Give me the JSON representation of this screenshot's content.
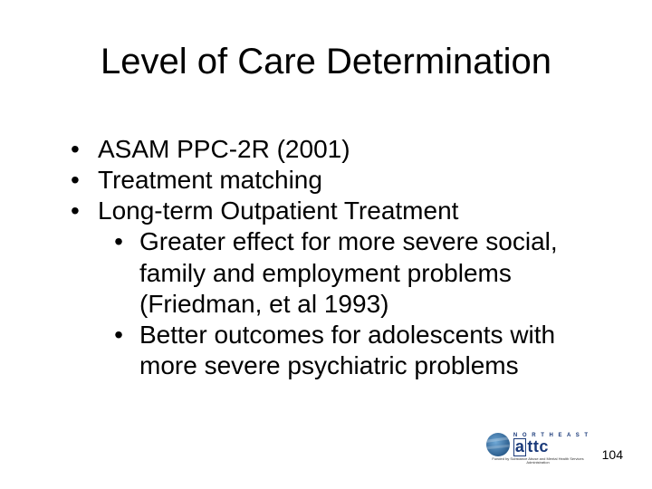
{
  "title": "Level of Care Determination",
  "bullets": {
    "b1": "ASAM PPC-2R (2001)",
    "b2": "Treatment matching",
    "b3": "Long-term Outpatient Treatment",
    "b3_1": "Greater effect for more severe social, family and employment problems (Friedman, et al 1993)",
    "b3_2": "Better outcomes for adolescents with more severe psychiatric problems"
  },
  "page_number": "104",
  "logo": {
    "northeast": "N O R T H E A S T",
    "attc": "ttc",
    "box_letter": "a",
    "sub": "Funded by Substance Abuse and Mental Health Services Administration"
  },
  "colors": {
    "text": "#000000",
    "background": "#ffffff",
    "logo_blue": "#1a3a7a"
  },
  "fonts": {
    "title_size_pt": 40,
    "body_size_pt": 28,
    "page_num_size_pt": 14
  }
}
